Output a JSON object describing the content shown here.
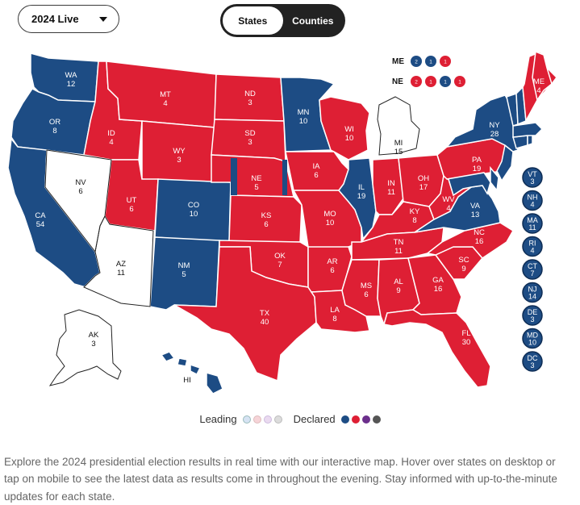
{
  "controls": {
    "year_select": "2024 Live",
    "view_tabs": [
      {
        "label": "States",
        "active": true
      },
      {
        "label": "Counties",
        "active": false
      }
    ]
  },
  "colors": {
    "democrat": "#1d4c84",
    "republican": "#de1f34",
    "undeclared": "#ffffff",
    "border": "#ffffff",
    "outline": "#222222"
  },
  "states": [
    {
      "abbr": "WA",
      "ev": "12",
      "winner": "D"
    },
    {
      "abbr": "OR",
      "ev": "8",
      "winner": "D"
    },
    {
      "abbr": "CA",
      "ev": "54",
      "winner": "D"
    },
    {
      "abbr": "NV",
      "ev": "6",
      "winner": "none"
    },
    {
      "abbr": "AZ",
      "ev": "11",
      "winner": "none"
    },
    {
      "abbr": "ID",
      "ev": "4",
      "winner": "R"
    },
    {
      "abbr": "MT",
      "ev": "4",
      "winner": "R"
    },
    {
      "abbr": "WY",
      "ev": "3",
      "winner": "R"
    },
    {
      "abbr": "UT",
      "ev": "6",
      "winner": "R"
    },
    {
      "abbr": "CO",
      "ev": "10",
      "winner": "D"
    },
    {
      "abbr": "NM",
      "ev": "5",
      "winner": "D"
    },
    {
      "abbr": "ND",
      "ev": "3",
      "winner": "R"
    },
    {
      "abbr": "SD",
      "ev": "3",
      "winner": "R"
    },
    {
      "abbr": "NE",
      "ev": "5",
      "winner": "R"
    },
    {
      "abbr": "KS",
      "ev": "6",
      "winner": "R"
    },
    {
      "abbr": "OK",
      "ev": "7",
      "winner": "R"
    },
    {
      "abbr": "TX",
      "ev": "40",
      "winner": "R"
    },
    {
      "abbr": "MN",
      "ev": "10",
      "winner": "D"
    },
    {
      "abbr": "IA",
      "ev": "6",
      "winner": "R"
    },
    {
      "abbr": "MO",
      "ev": "10",
      "winner": "R"
    },
    {
      "abbr": "AR",
      "ev": "6",
      "winner": "R"
    },
    {
      "abbr": "LA",
      "ev": "8",
      "winner": "R"
    },
    {
      "abbr": "WI",
      "ev": "10",
      "winner": "R"
    },
    {
      "abbr": "IL",
      "ev": "19",
      "winner": "D"
    },
    {
      "abbr": "MI",
      "ev": "15",
      "winner": "none"
    },
    {
      "abbr": "IN",
      "ev": "11",
      "winner": "R"
    },
    {
      "abbr": "OH",
      "ev": "17",
      "winner": "R"
    },
    {
      "abbr": "KY",
      "ev": "8",
      "winner": "R"
    },
    {
      "abbr": "TN",
      "ev": "11",
      "winner": "R"
    },
    {
      "abbr": "MS",
      "ev": "6",
      "winner": "R"
    },
    {
      "abbr": "AL",
      "ev": "9",
      "winner": "R"
    },
    {
      "abbr": "GA",
      "ev": "16",
      "winner": "R"
    },
    {
      "abbr": "FL",
      "ev": "30",
      "winner": "R"
    },
    {
      "abbr": "SC",
      "ev": "9",
      "winner": "R"
    },
    {
      "abbr": "NC",
      "ev": "16",
      "winner": "R"
    },
    {
      "abbr": "VA",
      "ev": "13",
      "winner": "D"
    },
    {
      "abbr": "WV",
      "ev": "4",
      "winner": "R"
    },
    {
      "abbr": "PA",
      "ev": "19",
      "winner": "R"
    },
    {
      "abbr": "NY",
      "ev": "28",
      "winner": "D"
    },
    {
      "abbr": "ME",
      "ev": "4",
      "winner": "R"
    },
    {
      "abbr": "AK",
      "ev": "3",
      "winner": "none"
    },
    {
      "abbr": "HI",
      "ev": "",
      "winner": "D"
    }
  ],
  "small_states": [
    {
      "abbr": "VT",
      "ev": "3",
      "winner": "D"
    },
    {
      "abbr": "NH",
      "ev": "4",
      "winner": "D"
    },
    {
      "abbr": "MA",
      "ev": "11",
      "winner": "D"
    },
    {
      "abbr": "RI",
      "ev": "4",
      "winner": "D"
    },
    {
      "abbr": "CT",
      "ev": "7",
      "winner": "D"
    },
    {
      "abbr": "NJ",
      "ev": "14",
      "winner": "D"
    },
    {
      "abbr": "DE",
      "ev": "3",
      "winner": "D"
    },
    {
      "abbr": "MD",
      "ev": "10",
      "winner": "D"
    },
    {
      "abbr": "DC",
      "ev": "3",
      "winner": "D"
    }
  ],
  "split_states": [
    {
      "abbr": "ME",
      "districts": [
        {
          "label": "2",
          "winner": "D"
        },
        {
          "label": "1",
          "winner": "D"
        },
        {
          "label": "1",
          "winner": "R"
        }
      ]
    },
    {
      "abbr": "NE",
      "districts": [
        {
          "label": "2",
          "winner": "R"
        },
        {
          "label": "1",
          "winner": "R"
        },
        {
          "label": "1",
          "winner": "D"
        },
        {
          "label": "1",
          "winner": "R"
        }
      ]
    }
  ],
  "legend": {
    "leading_label": "Leading",
    "declared_label": "Declared",
    "leading_colors": [
      "#d6e3f3",
      "#f6d4d8",
      "#eadaf0",
      "#dcdcdc"
    ],
    "declared_colors": [
      "#1d4c84",
      "#de1f34",
      "#6c2f8c",
      "#555555"
    ]
  },
  "description": "Explore the 2024 presidential election results in real time with our interactive map. Hover over states on desktop or tap on mobile to see the latest data as results come in throughout the evening. Stay informed with up-to-the-minute updates for each state."
}
